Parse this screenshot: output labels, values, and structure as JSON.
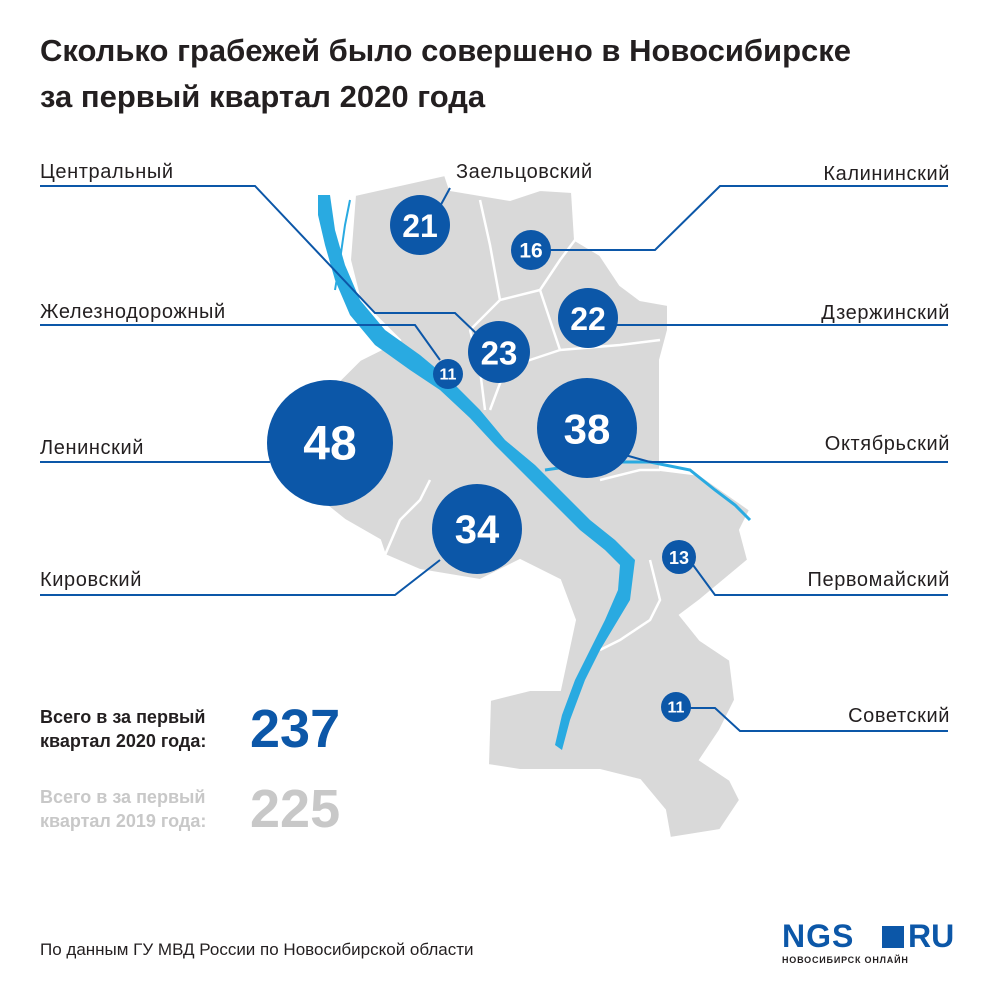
{
  "title": {
    "line1": "Сколько грабежей было совершено в Новосибирске",
    "line2": "за первый квартал 2020 года"
  },
  "colors": {
    "bubble": "#0c57a8",
    "leader": "#0c57a8",
    "map_fill": "#d9d9d9",
    "river": "#29aae1",
    "muted_text": "#c8c8c8"
  },
  "districts": [
    {
      "name": "Центральный",
      "value": "23"
    },
    {
      "name": "Заельцовский",
      "value": "21"
    },
    {
      "name": "Калининский",
      "value": "16"
    },
    {
      "name": "Железнодорожный",
      "value": "11"
    },
    {
      "name": "Дзержинский",
      "value": "22"
    },
    {
      "name": "Ленинский",
      "value": "48"
    },
    {
      "name": "Октябрьский",
      "value": "38"
    },
    {
      "name": "Кировский",
      "value": "34"
    },
    {
      "name": "Первомайский",
      "value": "13"
    },
    {
      "name": "Советский",
      "value": "11"
    }
  ],
  "totals": {
    "y2020": {
      "line1": "Всего в  за первый",
      "line2": "квартал 2020 года:",
      "value": "237"
    },
    "y2019": {
      "line1": "Всего в  за первый",
      "line2": "квартал 2019 года:",
      "value": "225"
    }
  },
  "source": "По данным ГУ МВД России по Новосибирской области",
  "logo": {
    "brand": "NGS",
    "domain": "RU",
    "subtitle": "НОВОСИБИРСК ОНЛАЙН"
  }
}
